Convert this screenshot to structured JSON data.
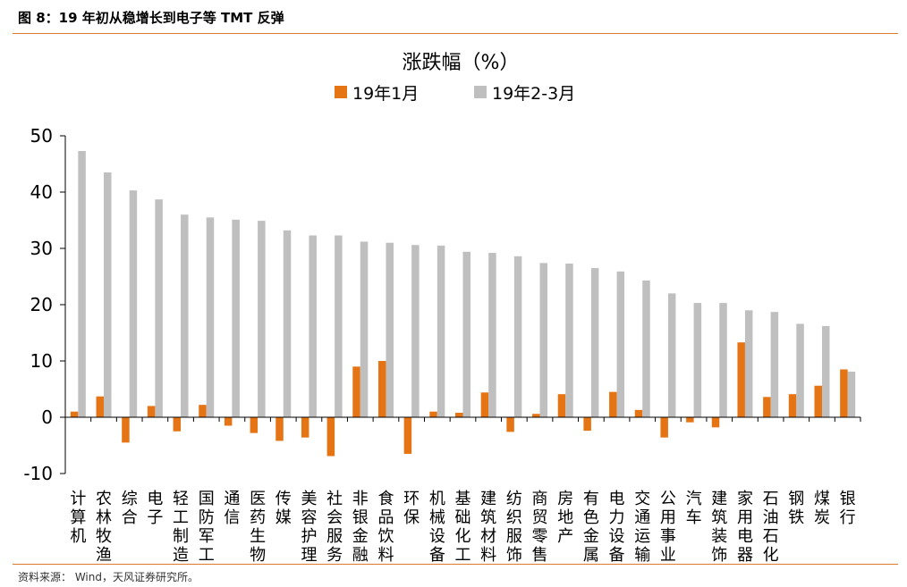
{
  "figure": {
    "title": "图 8：19 年初从稳增长到电子等 TMT 反弹",
    "source": "资料来源：  Wind，天风证券研究所。"
  },
  "colors": {
    "accent": "#D97B2E",
    "series1": "#E57514",
    "series2": "#BFBFBF"
  },
  "chart_data": {
    "type": "bar",
    "title": "涨跌幅（%）",
    "xlabel": "",
    "ylabel": "",
    "ylim": [
      -10,
      50
    ],
    "yticks": [
      -10,
      0,
      10,
      20,
      30,
      40,
      50
    ],
    "legend_position": "top-center",
    "grid": false,
    "categories": [
      "计算机",
      "农林牧渔",
      "综合",
      "电子",
      "轻工制造",
      "国防军工",
      "通信",
      "医药生物",
      "传媒",
      "美容护理",
      "社会服务",
      "非银金融",
      "食品饮料",
      "环保",
      "机械设备",
      "基础化工",
      "建筑材料",
      "纺织服饰",
      "商贸零售",
      "房地产",
      "有色金属",
      "电力设备",
      "交通运输",
      "公用事业",
      "汽车",
      "建筑装饰",
      "家用电器",
      "石油石化",
      "钢铁",
      "煤炭",
      "银行"
    ],
    "series": [
      {
        "name": "19年1月",
        "values": [
          1.0,
          3.7,
          -4.5,
          2.0,
          -2.5,
          2.2,
          -1.5,
          -2.8,
          -4.2,
          -3.6,
          -6.9,
          9.0,
          10.0,
          -6.5,
          1.0,
          0.8,
          4.4,
          -2.6,
          0.6,
          4.1,
          -2.4,
          4.5,
          1.3,
          -3.6,
          -0.9,
          -1.8,
          13.3,
          3.6,
          4.1,
          5.6,
          8.5
        ]
      },
      {
        "name": "19年2-3月",
        "values": [
          47.3,
          43.5,
          40.3,
          38.7,
          36.0,
          35.5,
          35.1,
          34.9,
          33.2,
          32.3,
          32.3,
          31.2,
          31.0,
          30.6,
          30.5,
          29.4,
          29.2,
          28.6,
          27.4,
          27.3,
          26.5,
          25.9,
          24.3,
          22.0,
          20.3,
          20.3,
          19.0,
          18.7,
          16.6,
          16.2,
          8.1
        ]
      }
    ]
  }
}
